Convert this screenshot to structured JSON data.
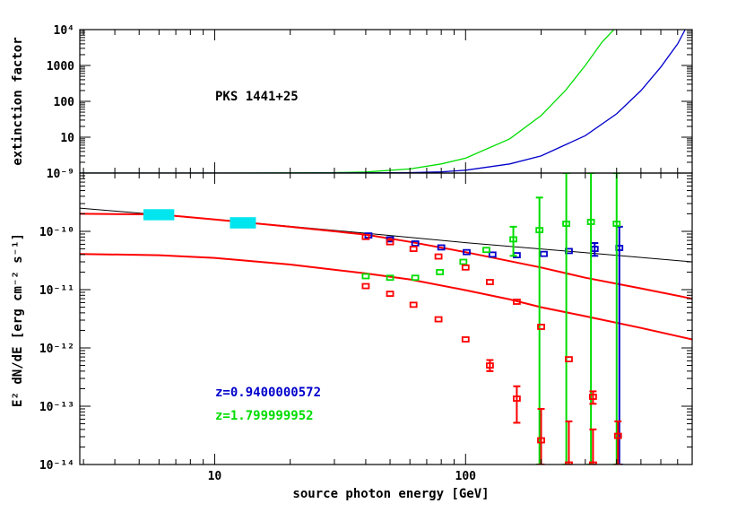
{
  "chart_data": [
    {
      "type": "line",
      "ylabel": "extinction factor",
      "annotation": "PKS 1441+25",
      "xscale": "log",
      "yscale": "log",
      "xlim": [
        2.9,
        800
      ],
      "ylim": [
        1,
        10000
      ],
      "yticks": [
        1,
        10,
        100,
        1000,
        10000
      ],
      "ytick_labels": [
        "",
        "10",
        "100",
        "1000",
        "10⁴"
      ],
      "series": [
        {
          "color": "#00dd00",
          "x": [
            2.9,
            10,
            20,
            30,
            40,
            60,
            80,
            100,
            150,
            200,
            250,
            300,
            350,
            390
          ],
          "y": [
            1,
            1,
            1.01,
            1.03,
            1.07,
            1.3,
            1.8,
            2.6,
            9,
            40,
            200,
            1000,
            4500,
            10000
          ]
        },
        {
          "color": "#0000cc",
          "x": [
            2.9,
            20,
            40,
            60,
            80,
            100,
            150,
            200,
            300,
            400,
            500,
            600,
            700,
            750
          ],
          "y": [
            1,
            1,
            1.01,
            1.03,
            1.08,
            1.2,
            1.8,
            3,
            11,
            45,
            200,
            900,
            4000,
            10000
          ]
        }
      ]
    },
    {
      "type": "scatter",
      "xlabel": "source photon energy [GeV]",
      "ylabel": "E² dN/dE [erg cm⁻² s⁻¹]",
      "xscale": "log",
      "yscale": "log",
      "xlim": [
        2.9,
        800
      ],
      "ylim": [
        1e-14,
        1e-09
      ],
      "xticks": [
        10,
        100
      ],
      "xtick_labels": [
        "10",
        "100"
      ],
      "yticks": [
        1e-14,
        1e-13,
        1e-12,
        1e-11,
        1e-10,
        1e-09
      ],
      "ytick_labels": [
        "10⁻¹⁴",
        "10⁻¹³",
        "10⁻¹²",
        "10⁻¹¹",
        "10⁻¹⁰",
        "10⁻⁹"
      ],
      "legend": [
        {
          "label": "z=0.9400000572",
          "color": "#0000cc"
        },
        {
          "label": "z=1.799999952",
          "color": "#00dd00"
        }
      ],
      "lines": [
        {
          "color": "#000000",
          "x": [
            2.9,
            10,
            50,
            100,
            300,
            800
          ],
          "y": [
            2.5e-10,
            1.6e-10,
            8.5e-11,
            6.4e-11,
            4.3e-11,
            3e-11
          ]
        },
        {
          "color": "#ff0000",
          "x": [
            2.9,
            6,
            10,
            20,
            40,
            60,
            100,
            200,
            300,
            500,
            800
          ],
          "y": [
            2e-10,
            1.95e-10,
            1.6e-10,
            1.2e-10,
            8.8e-11,
            6.6e-11,
            4.4e-11,
            2.4e-11,
            1.6e-11,
            1.05e-11,
            7e-12
          ]
        },
        {
          "color": "#ff0000",
          "x": [
            2.9,
            6,
            10,
            20,
            40,
            60,
            100,
            150,
            200,
            300,
            500,
            800
          ],
          "y": [
            4.1e-11,
            3.9e-11,
            3.5e-11,
            2.7e-11,
            1.9e-11,
            1.5e-11,
            9.8e-12,
            6.8e-12,
            5e-12,
            3.5e-12,
            2.2e-12,
            1.4e-12
          ]
        }
      ],
      "fermi": [
        {
          "x": 6,
          "y": 1.9e-10,
          "xlo": 5.2,
          "xhi": 6.9,
          "ylo": 1.55e-10,
          "yhi": 2.4e-10
        },
        {
          "x": 13,
          "y": 1.4e-10,
          "xlo": 11.5,
          "xhi": 14.6,
          "ylo": 1.12e-10,
          "yhi": 1.75e-10
        }
      ],
      "series": [
        {
          "color": "#0000cc",
          "points": [
            {
              "x": 41,
              "y": 8.5e-11
            },
            {
              "x": 50,
              "y": 7.3e-11
            },
            {
              "x": 63,
              "y": 6.2e-11
            },
            {
              "x": 80,
              "y": 5.3e-11
            },
            {
              "x": 101,
              "y": 4.4e-11
            },
            {
              "x": 128,
              "y": 4e-11
            },
            {
              "x": 160,
              "y": 3.9e-11
            },
            {
              "x": 205,
              "y": 4.1e-11
            },
            {
              "x": 258,
              "y": 4.6e-11
            },
            {
              "x": 327,
              "y": 5e-11,
              "ylo": 3.8e-11,
              "yhi": 6.3e-11
            },
            {
              "x": 410,
              "y": 5.2e-11,
              "ylo": 1e-14,
              "yhi": 1.2e-10
            }
          ]
        },
        {
          "color": "#00dd00",
          "points": [
            {
              "x": 40,
              "y": 1.7e-11
            },
            {
              "x": 50,
              "y": 1.6e-11
            },
            {
              "x": 63,
              "y": 1.6e-11
            },
            {
              "x": 79,
              "y": 2e-11
            },
            {
              "x": 98,
              "y": 3e-11
            },
            {
              "x": 121,
              "y": 4.8e-11
            },
            {
              "x": 155,
              "y": 7.3e-11,
              "ylo": 3.8e-11,
              "yhi": 1.2e-10
            },
            {
              "x": 197,
              "y": 1.05e-10,
              "ylo": 1e-14,
              "yhi": 3.8e-10
            },
            {
              "x": 252,
              "y": 1.35e-10,
              "ylo": 1e-14,
              "yhi": 1e-09
            },
            {
              "x": 316,
              "y": 1.45e-10,
              "ylo": 1e-14,
              "yhi": 1e-09
            },
            {
              "x": 400,
              "y": 1.35e-10,
              "ylo": 1e-14,
              "yhi": 1e-09
            }
          ]
        },
        {
          "color": "#ff0000",
          "points": [
            {
              "x": 40,
              "y": 8e-11
            },
            {
              "x": 40,
              "y": 1.15e-11
            },
            {
              "x": 50,
              "y": 6.5e-11
            },
            {
              "x": 50,
              "y": 8.5e-12
            },
            {
              "x": 62,
              "y": 5e-11
            },
            {
              "x": 62,
              "y": 5.5e-12
            },
            {
              "x": 78,
              "y": 3.7e-11
            },
            {
              "x": 78,
              "y": 3.1e-12
            },
            {
              "x": 100,
              "y": 2.4e-11
            },
            {
              "x": 100,
              "y": 1.4e-12
            },
            {
              "x": 125,
              "y": 1.35e-11
            },
            {
              "x": 125,
              "y": 5e-13,
              "ylo": 4e-13,
              "yhi": 6.2e-13
            },
            {
              "x": 160,
              "y": 6.2e-12
            },
            {
              "x": 160,
              "y": 1.35e-13,
              "ylo": 5.2e-14,
              "yhi": 2.2e-13
            },
            {
              "x": 200,
              "y": 2.3e-12
            },
            {
              "x": 200,
              "y": 2.6e-14,
              "ylo": 1e-14,
              "yhi": 9e-14
            },
            {
              "x": 258,
              "y": 6.4e-13
            },
            {
              "x": 258,
              "y": 1e-14,
              "ylo": 1e-14,
              "yhi": 5.5e-14
            },
            {
              "x": 322,
              "y": 1.45e-13,
              "ylo": 1.1e-13,
              "yhi": 1.8e-13
            },
            {
              "x": 322,
              "y": 1e-14,
              "ylo": 1e-14,
              "yhi": 4e-14
            },
            {
              "x": 405,
              "y": 3.1e-14,
              "ylo": 1e-14,
              "yhi": 5.5e-14
            }
          ]
        }
      ]
    }
  ]
}
